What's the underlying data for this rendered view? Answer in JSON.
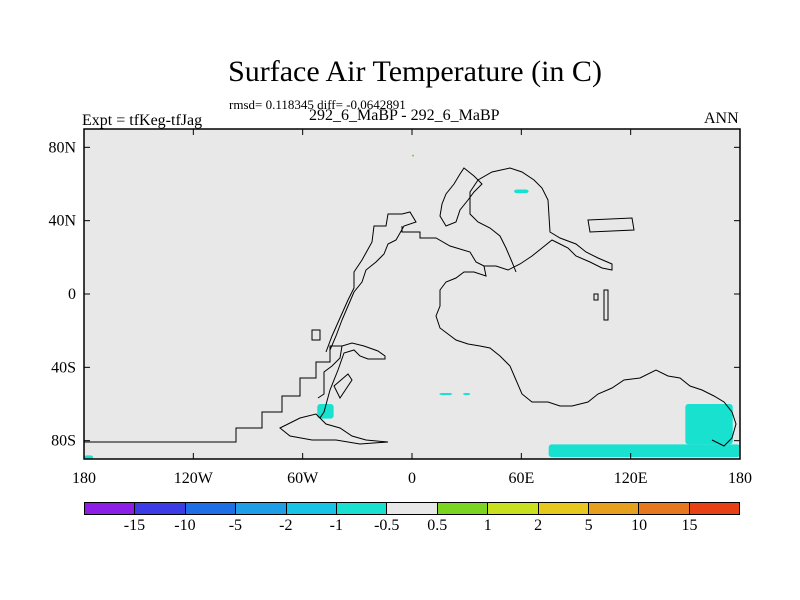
{
  "header": {
    "title": "Surface Air Temperature (in C)",
    "stats": "rmsd= 0.118345 diff= -0.0642891",
    "subtitle": "292_6_MaBP - 292_6_MaBP",
    "experiment": "Expt = tfKeg-tfJag",
    "season": "ANN"
  },
  "map": {
    "land_color": "#e8e8e8",
    "coastline_color": "#000000",
    "x_ticks": [
      "180",
      "120W",
      "60W",
      "0",
      "60E",
      "120E",
      "180"
    ],
    "y_ticks": [
      "80N",
      "40N",
      "0",
      "40S",
      "80S"
    ],
    "anomaly_patches": [
      {
        "label": "-1",
        "color": "#18e1d0",
        "lon": [
          75,
          180
        ],
        "lat": [
          -89,
          -82
        ]
      },
      {
        "label": "-1",
        "color": "#18e1d0",
        "lon": [
          150,
          176
        ],
        "lat": [
          -82,
          -60
        ]
      },
      {
        "label": "-1",
        "color": "#18e1d0",
        "lon": [
          -52,
          -43
        ],
        "lat": [
          -68,
          -60
        ]
      },
      {
        "label": "-1",
        "color": "#18e1d0",
        "lon": [
          56,
          64
        ],
        "lat": [
          55,
          57
        ]
      },
      {
        "label": "-1",
        "color": "#18e1d0",
        "lon": [
          15,
          22
        ],
        "lat": [
          -55,
          -54
        ]
      },
      {
        "label": "-1",
        "color": "#18e1d0",
        "lon": [
          28,
          32
        ],
        "lat": [
          -55,
          -54
        ]
      },
      {
        "label": "-1",
        "color": "#18e1d0",
        "lon": [
          -180,
          -175
        ],
        "lat": [
          -90,
          -88
        ]
      },
      {
        "label": "1",
        "color": "#7ad420",
        "lon": [
          0,
          1
        ],
        "lat": [
          75,
          76
        ]
      }
    ]
  },
  "colorbar": {
    "colors": [
      "#8c1ee6",
      "#3c3ce6",
      "#1e6ee6",
      "#1e9ee6",
      "#18c4e6",
      "#18e1d0",
      "#e8e8e8",
      "#7ad420",
      "#c8e01e",
      "#e6c81e",
      "#e6a01e",
      "#e6781e",
      "#e64014"
    ],
    "labels": [
      "-15",
      "-10",
      "-5",
      "-2",
      "-1",
      "-0.5",
      "0.5",
      "1",
      "2",
      "5",
      "10",
      "15"
    ]
  }
}
